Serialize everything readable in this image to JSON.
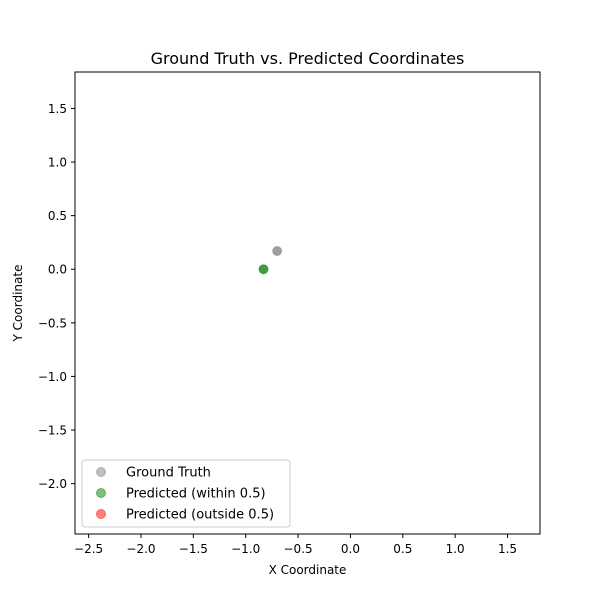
{
  "chart_data": {
    "type": "scatter",
    "title": "Ground Truth vs. Predicted Coordinates",
    "xlabel": "X Coordinate",
    "ylabel": "Y Coordinate",
    "xlim": [
      -2.63,
      1.81
    ],
    "ylim": [
      -2.47,
      1.84
    ],
    "xticks": [
      -2.5,
      -2.0,
      -1.5,
      -1.0,
      -0.5,
      0.0,
      0.5,
      1.0,
      1.5
    ],
    "xtick_labels": [
      "−2.5",
      "−2.0",
      "−1.5",
      "−1.0",
      "−0.5",
      "0.0",
      "0.5",
      "1.0",
      "1.5"
    ],
    "yticks": [
      1.5,
      1.0,
      0.5,
      0.0,
      -0.5,
      -1.0,
      -1.5,
      -2.0
    ],
    "ytick_labels": [
      "1.5",
      "1.0",
      "0.5",
      "0.0",
      "−0.5",
      "−1.0",
      "−1.5",
      "−2.0"
    ],
    "grid": false,
    "legend_position": "lower-left",
    "series": [
      {
        "name": "Ground Truth",
        "color": "#808080",
        "points": [
          {
            "x": -0.7,
            "y": 0.17
          }
        ]
      },
      {
        "name": "Predicted (within 0.5)",
        "color": "#008000",
        "points": [
          {
            "x": -0.83,
            "y": 0.0
          }
        ]
      },
      {
        "name": "Predicted (outside 0.5)",
        "color": "#ff0000",
        "points": []
      }
    ]
  }
}
